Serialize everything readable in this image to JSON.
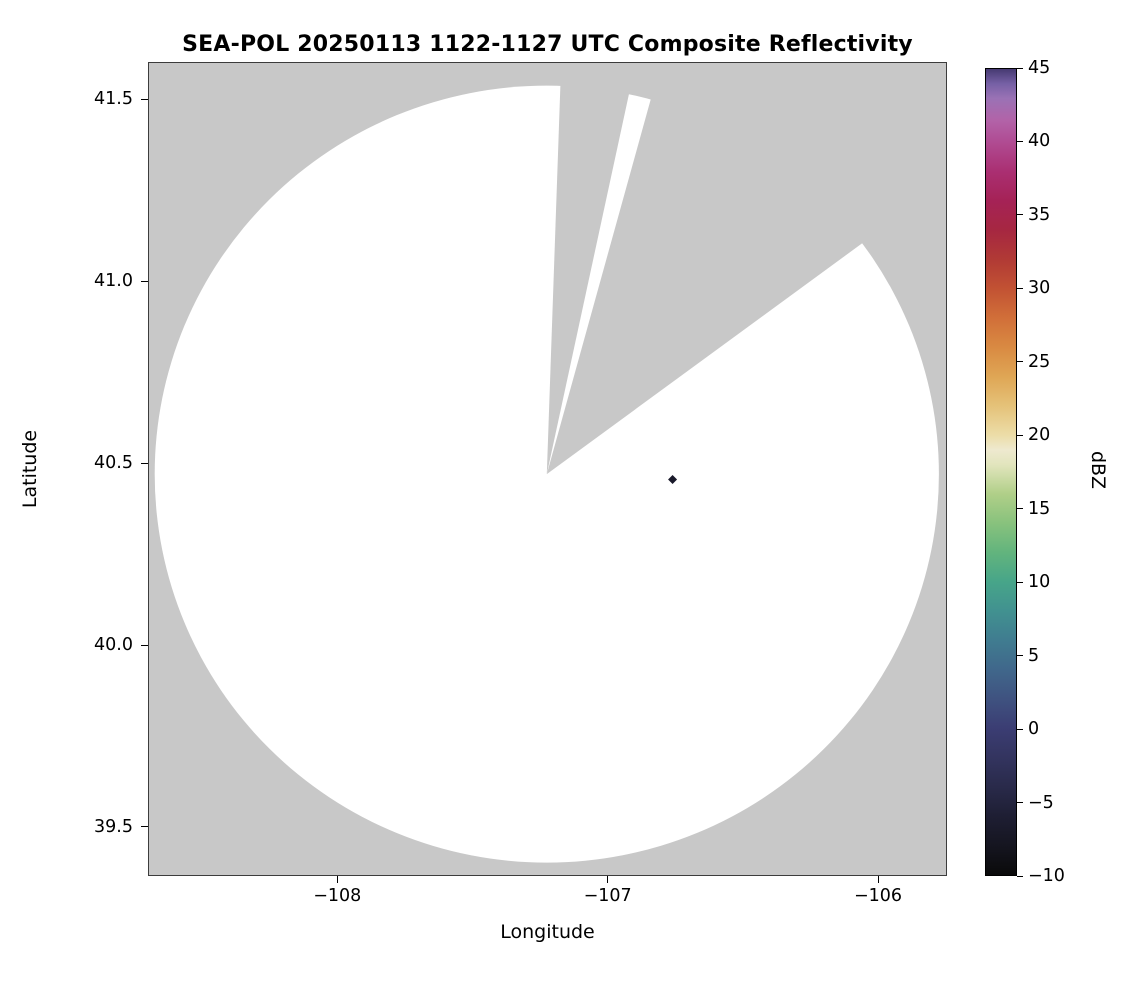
{
  "chart_data": {
    "type": "radar-coverage-map",
    "title": "SEA-POL 20250113 1122-1127 UTC Composite Reflectivity",
    "xlabel": "Longitude",
    "ylabel": "Latitude",
    "xlim": [
      -108.7,
      -105.745
    ],
    "ylim": [
      39.365,
      41.603
    ],
    "xticks": [
      -108,
      -107,
      -106
    ],
    "xtick_labels": [
      "−108",
      "−107",
      "−106"
    ],
    "yticks": [
      41.5,
      41.0,
      40.5,
      40.0,
      39.5
    ],
    "ytick_labels": [
      "41.5",
      "41.0",
      "40.5",
      "40.0",
      "39.5"
    ],
    "grid": false,
    "background_no_data_color": "#c8c8c8",
    "coverage_fill_color": "#ffffff",
    "radar": {
      "center_lon": -107.225,
      "center_lat": 40.47,
      "range_lon_deg": 1.45,
      "range_lat_deg": 1.068,
      "blocked_sector_azimuths_deg": [
        [
          2.0,
          12.2
        ],
        [
          15.5,
          53.8
        ]
      ]
    },
    "echoes": [
      {
        "lon": -106.76,
        "lat": 40.455,
        "dbz": -5,
        "marker": "diamond",
        "color": "#1a1a2b"
      }
    ],
    "colorbar": {
      "label": "dBZ",
      "min": -10,
      "max": 45,
      "ticks": [
        45,
        40,
        35,
        30,
        25,
        20,
        15,
        10,
        5,
        0,
        -5,
        -10
      ],
      "tick_labels": [
        "45",
        "40",
        "35",
        "30",
        "25",
        "20",
        "15",
        "10",
        "5",
        "0",
        "−5",
        "−10"
      ],
      "colormap_name": "ChaseSpectral",
      "stops": [
        {
          "v": -10,
          "c": "#0a0a0a"
        },
        {
          "v": -8,
          "c": "#151520"
        },
        {
          "v": -6,
          "c": "#1e1e33"
        },
        {
          "v": -4,
          "c": "#292a4a"
        },
        {
          "v": -2,
          "c": "#33345f"
        },
        {
          "v": 0,
          "c": "#3b3d73"
        },
        {
          "v": 2,
          "c": "#3f5280"
        },
        {
          "v": 4,
          "c": "#40678b"
        },
        {
          "v": 6,
          "c": "#407c90"
        },
        {
          "v": 8,
          "c": "#419190"
        },
        {
          "v": 10,
          "c": "#47a589"
        },
        {
          "v": 12,
          "c": "#62b47d"
        },
        {
          "v": 14,
          "c": "#88c27d"
        },
        {
          "v": 16,
          "c": "#b0cf88"
        },
        {
          "v": 18,
          "c": "#e2e5bd"
        },
        {
          "v": 19,
          "c": "#eee9cf"
        },
        {
          "v": 20,
          "c": "#ecdda8"
        },
        {
          "v": 22,
          "c": "#e5c279"
        },
        {
          "v": 24,
          "c": "#dfa655"
        },
        {
          "v": 26,
          "c": "#d98a42"
        },
        {
          "v": 28,
          "c": "#d16f39"
        },
        {
          "v": 30,
          "c": "#c25233"
        },
        {
          "v": 32,
          "c": "#b13a35"
        },
        {
          "v": 34,
          "c": "#a62741"
        },
        {
          "v": 36,
          "c": "#a52256"
        },
        {
          "v": 38,
          "c": "#aa2f72"
        },
        {
          "v": 40,
          "c": "#b04b92"
        },
        {
          "v": 41.5,
          "c": "#b263a8"
        },
        {
          "v": 43,
          "c": "#9a72b5"
        },
        {
          "v": 44,
          "c": "#7660a5"
        },
        {
          "v": 45,
          "c": "#463a72"
        }
      ]
    }
  }
}
